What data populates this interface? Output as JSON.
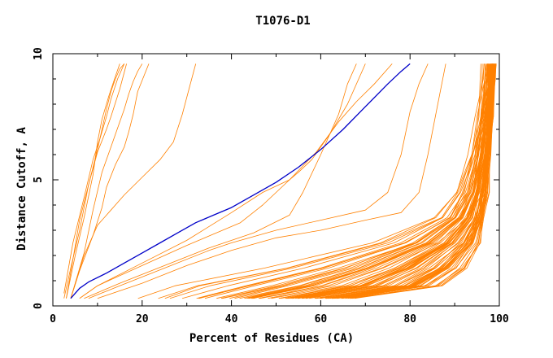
{
  "chart_data": {
    "type": "line",
    "title": "T1076-D1",
    "xlabel": "Percent of Residues (CA)",
    "ylabel": "Distance Cutoff, A",
    "xlim": [
      0,
      100
    ],
    "ylim": [
      0,
      10
    ],
    "x_ticks": [
      0,
      20,
      40,
      60,
      80,
      100
    ],
    "y_ticks": [
      0,
      5,
      10
    ],
    "grid": false,
    "colors": {
      "highlight": "#0000c8",
      "others": "#ff8000",
      "axis": "#000000"
    },
    "highlight_series": {
      "x": [
        4,
        6,
        8,
        12,
        16,
        20,
        24,
        28,
        32,
        36,
        40,
        45,
        50,
        55,
        60,
        65,
        70,
        75,
        78,
        80
      ],
      "y": [
        0.3,
        0.7,
        0.95,
        1.3,
        1.7,
        2.1,
        2.5,
        2.9,
        3.3,
        3.6,
        3.9,
        4.4,
        4.9,
        5.5,
        6.2,
        7.0,
        7.9,
        8.8,
        9.3,
        9.6
      ]
    },
    "outlier_series": [
      {
        "x": [
          2.5,
          4,
          6,
          8,
          10,
          11,
          12,
          13,
          14,
          15,
          16
        ],
        "y": [
          0.3,
          1.5,
          3.0,
          4.8,
          6.2,
          7.0,
          7.8,
          8.5,
          9.0,
          9.4,
          9.6
        ]
      },
      {
        "x": [
          3,
          5,
          7,
          9,
          10,
          11,
          12.5,
          14,
          15
        ],
        "y": [
          0.3,
          2.0,
          3.5,
          5.2,
          6.5,
          7.4,
          8.3,
          9.1,
          9.6
        ]
      },
      {
        "x": [
          2.5,
          4.5,
          7,
          9,
          10.5,
          12,
          13,
          14.5,
          16
        ],
        "y": [
          0.5,
          2.5,
          4.3,
          5.8,
          6.6,
          7.5,
          8.2,
          9.0,
          9.6
        ]
      },
      {
        "x": [
          3,
          6,
          8,
          10,
          12,
          13,
          15,
          16.5
        ],
        "y": [
          0.3,
          3.4,
          4.8,
          6.1,
          7.0,
          7.5,
          8.6,
          9.6
        ]
      },
      {
        "x": [
          4,
          7,
          9,
          11,
          13,
          15,
          16,
          17,
          18,
          19,
          20
        ],
        "y": [
          0.3,
          2.1,
          3.8,
          5.3,
          6.3,
          7.3,
          7.8,
          8.4,
          8.9,
          9.3,
          9.6
        ]
      },
      {
        "x": [
          4,
          6,
          9,
          11,
          12,
          14,
          16,
          17,
          18,
          19,
          21.5
        ],
        "y": [
          0.3,
          1.4,
          2.8,
          3.9,
          4.7,
          5.6,
          6.3,
          6.9,
          7.6,
          8.5,
          9.6
        ]
      },
      {
        "x": [
          4,
          7,
          10,
          13,
          16,
          20,
          24,
          27,
          29,
          30.5,
          32
        ],
        "y": [
          0.3,
          2.0,
          3.2,
          3.8,
          4.4,
          5.1,
          5.8,
          6.5,
          7.6,
          8.6,
          9.6
        ]
      }
    ],
    "series_count_note": "Orange family: percentile-range curves",
    "right_family": {
      "count": 80,
      "x_at_y": {
        "y": [
          0.3,
          0.8,
          1.5,
          2.5,
          3.5,
          4.5,
          6.0,
          7.5,
          9.0,
          9.6
        ],
        "x_low": [
          6,
          10,
          35,
          65,
          82,
          88,
          92,
          94,
          95,
          95
        ],
        "x_high": [
          68,
          88,
          93,
          96,
          97,
          97.5,
          98,
          98.5,
          99,
          99
        ]
      }
    },
    "mid_curves": [
      {
        "x": [
          6,
          10,
          20,
          30,
          40,
          47,
          53,
          59,
          64,
          68,
          72,
          76
        ],
        "y": [
          0.3,
          0.8,
          1.7,
          2.6,
          3.7,
          4.5,
          5.0,
          6.1,
          7.3,
          8.1,
          8.8,
          9.6
        ]
      },
      {
        "x": [
          6,
          10,
          20,
          30,
          42,
          47,
          50,
          53,
          55,
          58,
          62,
          66,
          70
        ],
        "y": [
          0.3,
          0.8,
          1.6,
          2.4,
          3.3,
          4.0,
          4.5,
          5.0,
          5.3,
          5.8,
          6.8,
          8.0,
          9.6
        ]
      },
      {
        "x": [
          8,
          15,
          25,
          35,
          40,
          50,
          60,
          70,
          75,
          78,
          80,
          82,
          84
        ],
        "y": [
          0.3,
          0.8,
          1.5,
          2.2,
          2.5,
          3.0,
          3.4,
          3.8,
          4.5,
          6.0,
          7.7,
          8.8,
          9.6
        ]
      },
      {
        "x": [
          10,
          20,
          30,
          40,
          50,
          60,
          70,
          78,
          82,
          84,
          86,
          88
        ],
        "y": [
          0.3,
          0.9,
          1.6,
          2.2,
          2.7,
          3.0,
          3.4,
          3.7,
          4.5,
          6.0,
          7.8,
          9.6
        ]
      },
      {
        "x": [
          7,
          15,
          25,
          35,
          45,
          53,
          56,
          60,
          64,
          66,
          68
        ],
        "y": [
          0.3,
          0.9,
          1.6,
          2.3,
          2.9,
          3.6,
          4.5,
          6.0,
          7.6,
          8.8,
          9.6
        ]
      }
    ]
  }
}
